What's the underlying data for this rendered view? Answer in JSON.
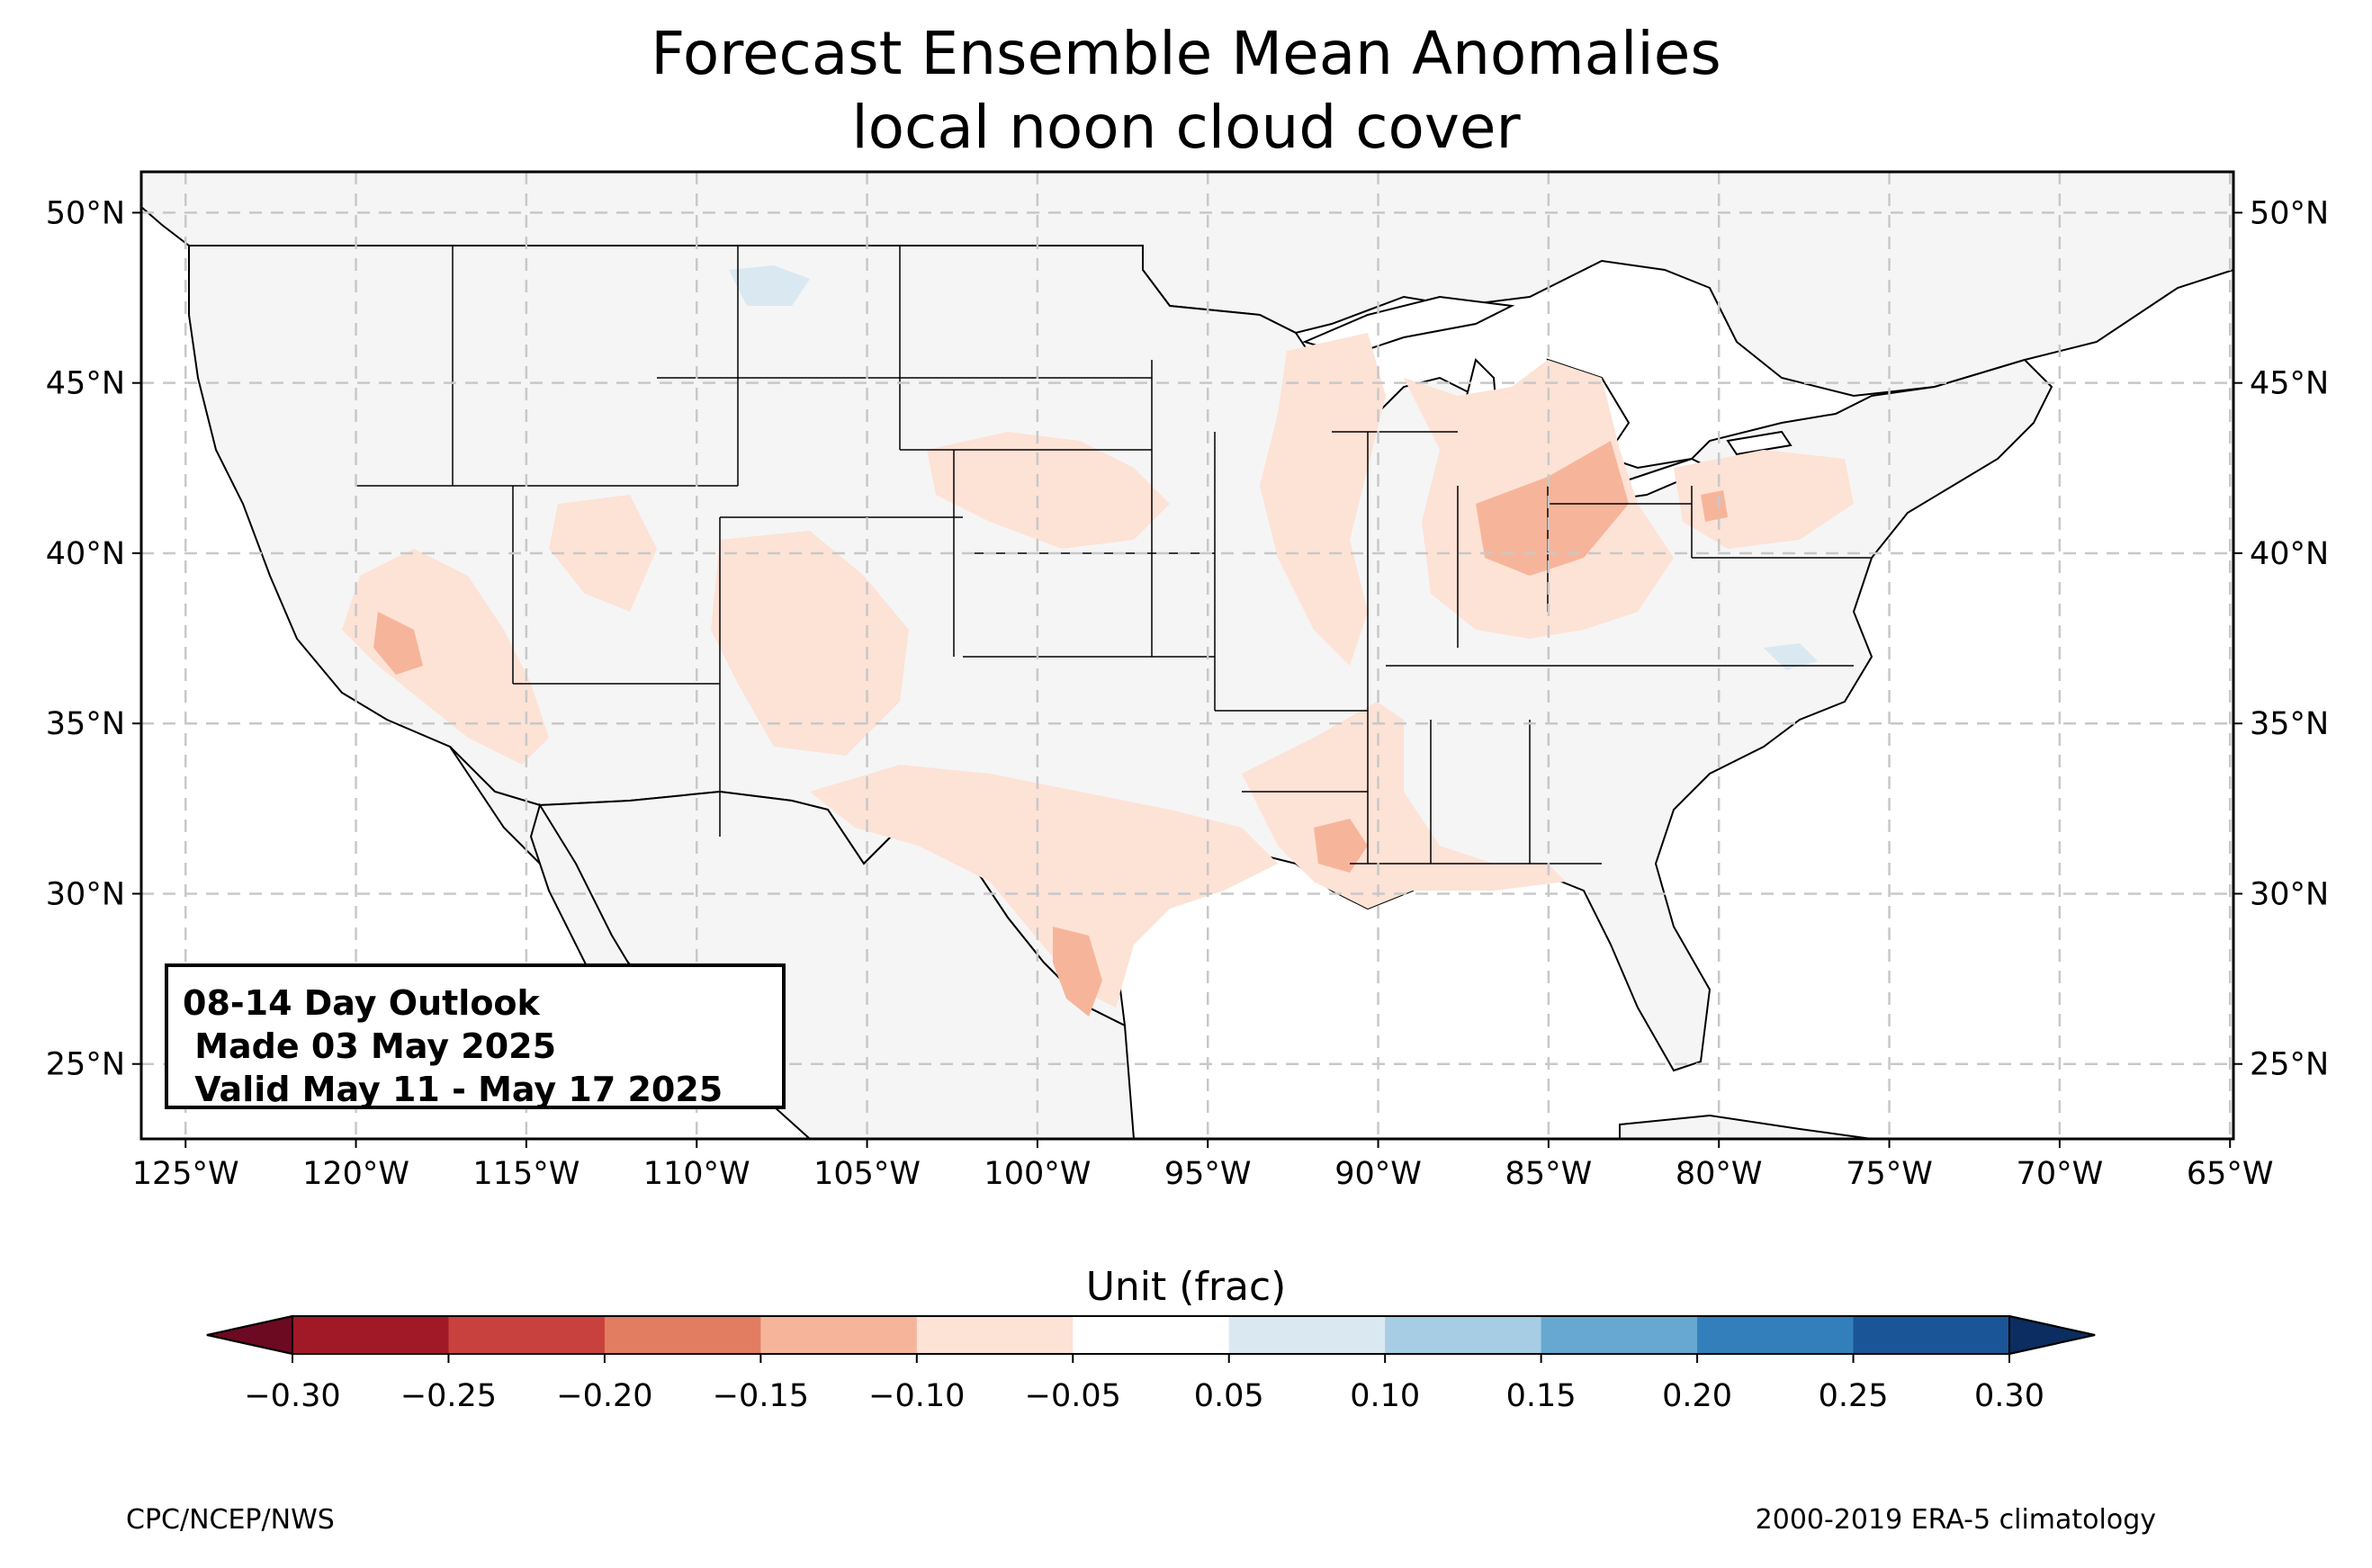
{
  "title": {
    "line1": "Forecast Ensemble Mean Anomalies",
    "line2": "local noon cloud cover"
  },
  "map": {
    "lon_range": [
      -126.3,
      -64.9
    ],
    "lat_range": [
      22.8,
      51.2
    ],
    "lon_ticks": [
      "125°W",
      "120°W",
      "115°W",
      "110°W",
      "105°W",
      "100°W",
      "95°W",
      "90°W",
      "85°W",
      "80°W",
      "75°W",
      "70°W",
      "65°W"
    ],
    "lat_ticks": [
      "50°N",
      "45°N",
      "40°N",
      "35°N",
      "30°N",
      "25°N"
    ],
    "lon_values": [
      -125,
      -120,
      -115,
      -110,
      -105,
      -100,
      -95,
      -90,
      -85,
      -80,
      -75,
      -70,
      -65
    ],
    "lat_values": [
      50,
      45,
      40,
      35,
      30,
      25
    ],
    "gridlines": true,
    "land_color": "#f5f5f5",
    "anomaly_regions": [
      {
        "name": "California / Nevada",
        "value": -0.08
      },
      {
        "name": "Southern California hotspot",
        "value": -0.14
      },
      {
        "name": "Utah / Colorado",
        "value": -0.07
      },
      {
        "name": "Southwest / New Mexico",
        "value": -0.07
      },
      {
        "name": "Central Plains",
        "value": -0.07
      },
      {
        "name": "Texas",
        "value": -0.08
      },
      {
        "name": "South Texas hotspot",
        "value": -0.13
      },
      {
        "name": "Gulf Coast / Louisiana",
        "value": -0.09
      },
      {
        "name": "Louisiana hotspot",
        "value": -0.12
      },
      {
        "name": "Upper Midwest / Great Lakes",
        "value": -0.07
      },
      {
        "name": "Ohio Valley",
        "value": -0.12
      },
      {
        "name": "Pennsylvania",
        "value": -0.07
      },
      {
        "name": "Montana",
        "value": 0.06
      },
      {
        "name": "Virginia",
        "value": 0.05
      }
    ]
  },
  "info_box": {
    "line1": "08-14 Day Outlook",
    "line2": " Made 03 May 2025",
    "line3": " Valid May 11 - May 17 2025"
  },
  "colorbar": {
    "label": "Unit (frac)",
    "ticks": [
      "−0.30",
      "−0.25",
      "−0.20",
      "−0.15",
      "−0.10",
      "−0.05",
      "0.05",
      "0.10",
      "0.15",
      "0.20",
      "0.25",
      "0.30"
    ],
    "colors": [
      "#a11926",
      "#c8413e",
      "#e27d62",
      "#f6b59a",
      "#fde2d6",
      "#ffffff",
      "#dae8f2",
      "#a6cde3",
      "#67a8d0",
      "#327fbb",
      "#1a5597"
    ],
    "extend_low_color": "#6b0a20",
    "extend_high_color": "#0b2d5f"
  },
  "footer": {
    "left": "CPC/NCEP/NWS",
    "right": "2000-2019 ERA-5 climatology"
  }
}
